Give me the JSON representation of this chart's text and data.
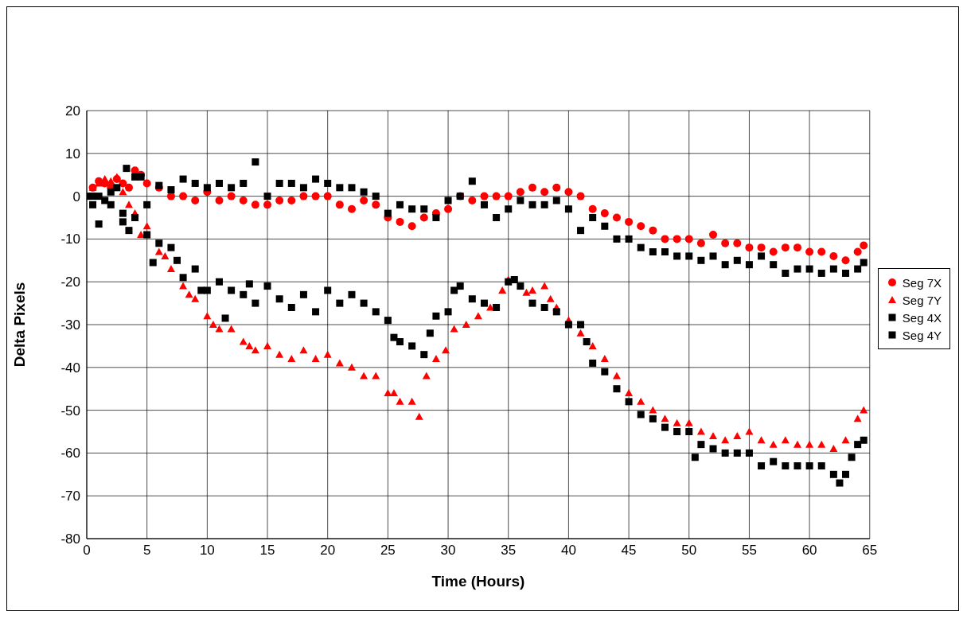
{
  "chart_data": {
    "type": "scatter",
    "xlabel": "Time (Hours)",
    "ylabel": "Delta Pixels",
    "xlim": [
      0,
      65
    ],
    "xticks": [
      0,
      5,
      10,
      15,
      20,
      25,
      30,
      35,
      40,
      45,
      50,
      55,
      60,
      65
    ],
    "ylim": [
      -80,
      20
    ],
    "yticks": [
      -80,
      -70,
      -60,
      -50,
      -40,
      -30,
      -20,
      -10,
      0,
      10,
      20
    ],
    "grid": true,
    "legend": "right",
    "series": [
      {
        "name": "Seg 7X",
        "color": "#ff0000",
        "marker": "circle",
        "x": [
          0.5,
          1,
          1.5,
          2,
          2.5,
          3,
          3.5,
          4,
          4.5,
          5,
          6,
          7,
          8,
          9,
          10,
          11,
          12,
          13,
          14,
          15,
          16,
          17,
          18,
          19,
          20,
          21,
          22,
          23,
          24,
          25,
          26,
          27,
          28,
          29,
          30,
          31,
          32,
          33,
          34,
          35,
          36,
          37,
          38,
          39,
          40,
          41,
          42,
          43,
          44,
          45,
          46,
          47,
          48,
          49,
          50,
          51,
          52,
          53,
          54,
          55,
          56,
          57,
          58,
          59,
          60,
          61,
          62,
          63,
          64,
          64.5
        ],
        "values": [
          2,
          3.5,
          3,
          2,
          4,
          3,
          2,
          6,
          5,
          3,
          2,
          0,
          0,
          -1,
          1,
          -1,
          0,
          -1,
          -2,
          -2,
          -1,
          -1,
          0,
          0,
          0,
          -2,
          -3,
          -1,
          -2,
          -5,
          -6,
          -7,
          -5,
          -4,
          -3,
          0,
          -1,
          0,
          0,
          0,
          1,
          2,
          1,
          2,
          1,
          0,
          -3,
          -4,
          -5,
          -6,
          -7,
          -8,
          -10,
          -10,
          -10,
          -11,
          -9,
          -11,
          -11,
          -12,
          -12,
          -13,
          -12,
          -12,
          -13,
          -13,
          -14,
          -15,
          -13,
          -11.5
        ]
      },
      {
        "name": "Seg 7Y",
        "color": "#ff0000",
        "marker": "triangle",
        "x": [
          0.5,
          1,
          1.5,
          2,
          2.5,
          3,
          3.5,
          4,
          4.5,
          5,
          6,
          6.5,
          7,
          8,
          8.5,
          9,
          10,
          10.5,
          11,
          12,
          13,
          13.5,
          14,
          15,
          16,
          17,
          18,
          19,
          20,
          21,
          22,
          23,
          24,
          25,
          25.5,
          26,
          27,
          27.6,
          28.2,
          29,
          29.8,
          30.5,
          31.5,
          32.5,
          33.5,
          34.5,
          35,
          36.5,
          37,
          38,
          38.5,
          39,
          40,
          41,
          42,
          43,
          44,
          45,
          46,
          47,
          48,
          49,
          50,
          51,
          52,
          53,
          54,
          55,
          56,
          57,
          58,
          59,
          60,
          61,
          62,
          63,
          64,
          64.5
        ],
        "values": [
          2,
          3,
          4,
          3.5,
          4.5,
          1,
          -2,
          -4,
          -9,
          -7,
          -13,
          -14,
          -17,
          -21,
          -23,
          -24,
          -28,
          -30,
          -31,
          -31,
          -34,
          -35,
          -36,
          -35,
          -37,
          -38,
          -36,
          -38,
          -37,
          -39,
          -40,
          -42,
          -42,
          -46,
          -46,
          -48,
          -48,
          -51.5,
          -42,
          -38,
          -36,
          -31,
          -30,
          -28,
          -26,
          -22,
          -19.5,
          -22.5,
          -22,
          -21,
          -24,
          -26,
          -29,
          -32,
          -35,
          -38,
          -42,
          -46,
          -48,
          -50,
          -52,
          -53,
          -53,
          -55,
          -56,
          -57,
          -56,
          -55,
          -57,
          -58,
          -57,
          -58,
          -58,
          -58,
          -59,
          -57,
          -52,
          -50
        ]
      },
      {
        "name": "Seg 4X",
        "color": "#000000",
        "marker": "square",
        "x": [
          0,
          0.5,
          1,
          1.5,
          2,
          2.5,
          3,
          3.3,
          4,
          4.5,
          5,
          6,
          7,
          8,
          9,
          10,
          11,
          12,
          13,
          14,
          15,
          16,
          17,
          18,
          19,
          20,
          21,
          22,
          23,
          24,
          25,
          26,
          27,
          28,
          29,
          30,
          31,
          32,
          33,
          34,
          35,
          36,
          37,
          38,
          39,
          40,
          41,
          42,
          43,
          44,
          45,
          46,
          47,
          48,
          49,
          50,
          51,
          52,
          53,
          54,
          55,
          56,
          57,
          58,
          59,
          60,
          61,
          62,
          63,
          64,
          64.5
        ],
        "values": [
          0,
          0,
          0,
          -1,
          1,
          2,
          -4,
          6.5,
          4.5,
          4.5,
          -2,
          2.5,
          1.5,
          4,
          3,
          2,
          3,
          2,
          3,
          8,
          0,
          3,
          3,
          2,
          4,
          3,
          2,
          2,
          1,
          0,
          -4,
          -2,
          -3,
          -3,
          -5,
          -1,
          0,
          3.5,
          -2,
          -5,
          -3,
          -1,
          -2,
          -2,
          -1,
          -3,
          -8,
          -5,
          -7,
          -10,
          -10,
          -12,
          -13,
          -13,
          -14,
          -14,
          -15,
          -14,
          -16,
          -15,
          -16,
          -14,
          -16,
          -18,
          -17,
          -17,
          -18,
          -17,
          -18,
          -17,
          -15.5
        ]
      },
      {
        "name": "Seg 4Y",
        "color": "#000000",
        "marker": "square",
        "x": [
          0.5,
          1,
          2,
          3,
          3.5,
          4,
          5,
          5.5,
          6,
          7,
          7.5,
          8,
          9,
          9.5,
          10,
          11,
          11.5,
          12,
          13,
          13.5,
          14,
          15,
          16,
          17,
          18,
          19,
          20,
          21,
          22,
          23,
          24,
          25,
          25.5,
          26,
          27,
          28,
          28.5,
          29,
          30,
          30.5,
          31,
          32,
          33,
          34,
          35,
          35.5,
          36,
          37,
          38,
          39,
          40,
          41,
          41.5,
          42,
          43,
          44,
          45,
          46,
          47,
          48,
          49,
          50,
          50.5,
          51,
          52,
          53,
          54,
          55,
          56,
          57,
          58,
          59,
          60,
          61,
          62,
          62.5,
          63,
          63.5,
          64,
          64.5
        ],
        "values": [
          -2,
          -6.5,
          -2,
          -6,
          -8,
          -5,
          -9,
          -15.5,
          -11,
          -12,
          -15,
          -19,
          -17,
          -22,
          -22,
          -20,
          -28.5,
          -22,
          -23,
          -20.5,
          -25,
          -21,
          -24,
          -26,
          -23,
          -27,
          -22,
          -25,
          -23,
          -25,
          -27,
          -29,
          -33,
          -34,
          -35,
          -37,
          -32,
          -28,
          -27,
          -22,
          -21,
          -24,
          -25,
          -26,
          -20,
          -19.5,
          -21,
          -25,
          -26,
          -27,
          -30,
          -30,
          -34,
          -39,
          -41,
          -45,
          -48,
          -51,
          -52,
          -54,
          -55,
          -55,
          -61,
          -58,
          -59,
          -60,
          -60,
          -60,
          -63,
          -62,
          -63,
          -63,
          -63,
          -63,
          -65,
          -67,
          -65,
          -61,
          -58,
          -57
        ]
      }
    ]
  }
}
